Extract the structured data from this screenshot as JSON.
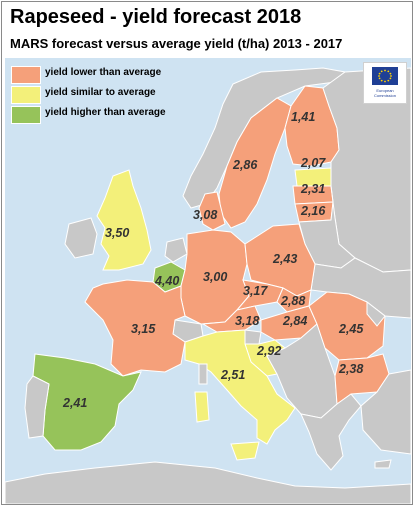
{
  "title": "Rapeseed - yield forecast 2018",
  "subtitle": "MARS forecast versus average yield (t/ha) 2013 - 2017",
  "legend": [
    {
      "label": "yield lower than average",
      "color": "#f5a07a"
    },
    {
      "label": "yield similar to average",
      "color": "#f3f07a"
    },
    {
      "label": "yield higher than average",
      "color": "#96c35a"
    }
  ],
  "logo": {
    "text": "European Commission"
  },
  "colors": {
    "sea": "#cfe3f2",
    "nodata": "#c8c8c8",
    "border": "#ffffff"
  },
  "values": [
    {
      "id": "finland",
      "value": "1,41",
      "category": "lower"
    },
    {
      "id": "sweden",
      "value": "2,86",
      "category": "lower"
    },
    {
      "id": "estonia",
      "value": "2,07",
      "category": "similar"
    },
    {
      "id": "latvia",
      "value": "2,31",
      "category": "lower"
    },
    {
      "id": "lithuania",
      "value": "2,16",
      "category": "lower"
    },
    {
      "id": "denmark",
      "value": "3,08",
      "category": "lower"
    },
    {
      "id": "uk",
      "value": "3,50",
      "category": "similar"
    },
    {
      "id": "belgium",
      "value": "4,40",
      "category": "higher"
    },
    {
      "id": "germany",
      "value": "3,00",
      "category": "lower"
    },
    {
      "id": "poland",
      "value": "2,43",
      "category": "lower"
    },
    {
      "id": "czechia",
      "value": "3,17",
      "category": "lower"
    },
    {
      "id": "slovakia",
      "value": "2,88",
      "category": "lower"
    },
    {
      "id": "france",
      "value": "3,15",
      "category": "lower"
    },
    {
      "id": "austria",
      "value": "3,18",
      "category": "lower"
    },
    {
      "id": "hungary",
      "value": "2,84",
      "category": "lower"
    },
    {
      "id": "romania",
      "value": "2,45",
      "category": "lower"
    },
    {
      "id": "croatia",
      "value": "2,92",
      "category": "similar"
    },
    {
      "id": "italy",
      "value": "2,51",
      "category": "similar"
    },
    {
      "id": "bulgaria",
      "value": "2,38",
      "category": "lower"
    },
    {
      "id": "spain",
      "value": "2,41",
      "category": "higher"
    }
  ]
}
